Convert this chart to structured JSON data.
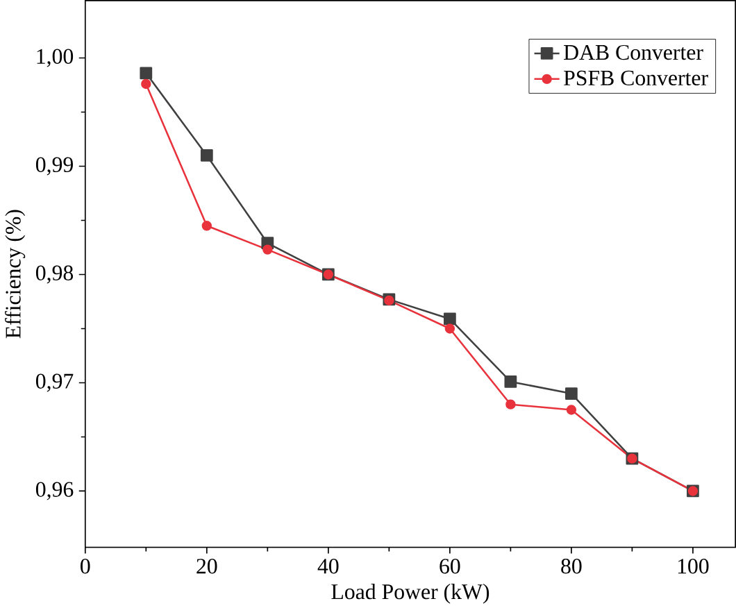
{
  "chart_data": {
    "type": "line",
    "xlabel": "Load Power (kW)",
    "ylabel": "Efficiency (%)",
    "x": [
      10,
      20,
      30,
      40,
      50,
      60,
      70,
      80,
      90,
      100
    ],
    "series": [
      {
        "name": "DAB Converter",
        "color": "#404040",
        "marker": "square",
        "values": [
          0.9986,
          0.991,
          0.9829,
          0.98,
          0.9777,
          0.9759,
          0.9701,
          0.969,
          0.963,
          0.96
        ]
      },
      {
        "name": "PSFB Converter",
        "color": "#e8323c",
        "marker": "circle",
        "values": [
          0.9976,
          0.9845,
          0.9823,
          0.98,
          0.9776,
          0.975,
          0.968,
          0.9675,
          0.963,
          0.96
        ]
      }
    ],
    "xlim": [
      0,
      107
    ],
    "ylim": [
      0.9548,
      1.0053
    ],
    "xticks": [
      0,
      20,
      40,
      60,
      80,
      100
    ],
    "yticks": [
      {
        "value": 0.96,
        "label": "0,96"
      },
      {
        "value": 0.97,
        "label": "0,97"
      },
      {
        "value": 0.98,
        "label": "0,98"
      },
      {
        "value": 0.99,
        "label": "0,99"
      },
      {
        "value": 1.0,
        "label": "1,00"
      }
    ],
    "legend": "top right",
    "grid": false,
    "line_style": "solid"
  }
}
